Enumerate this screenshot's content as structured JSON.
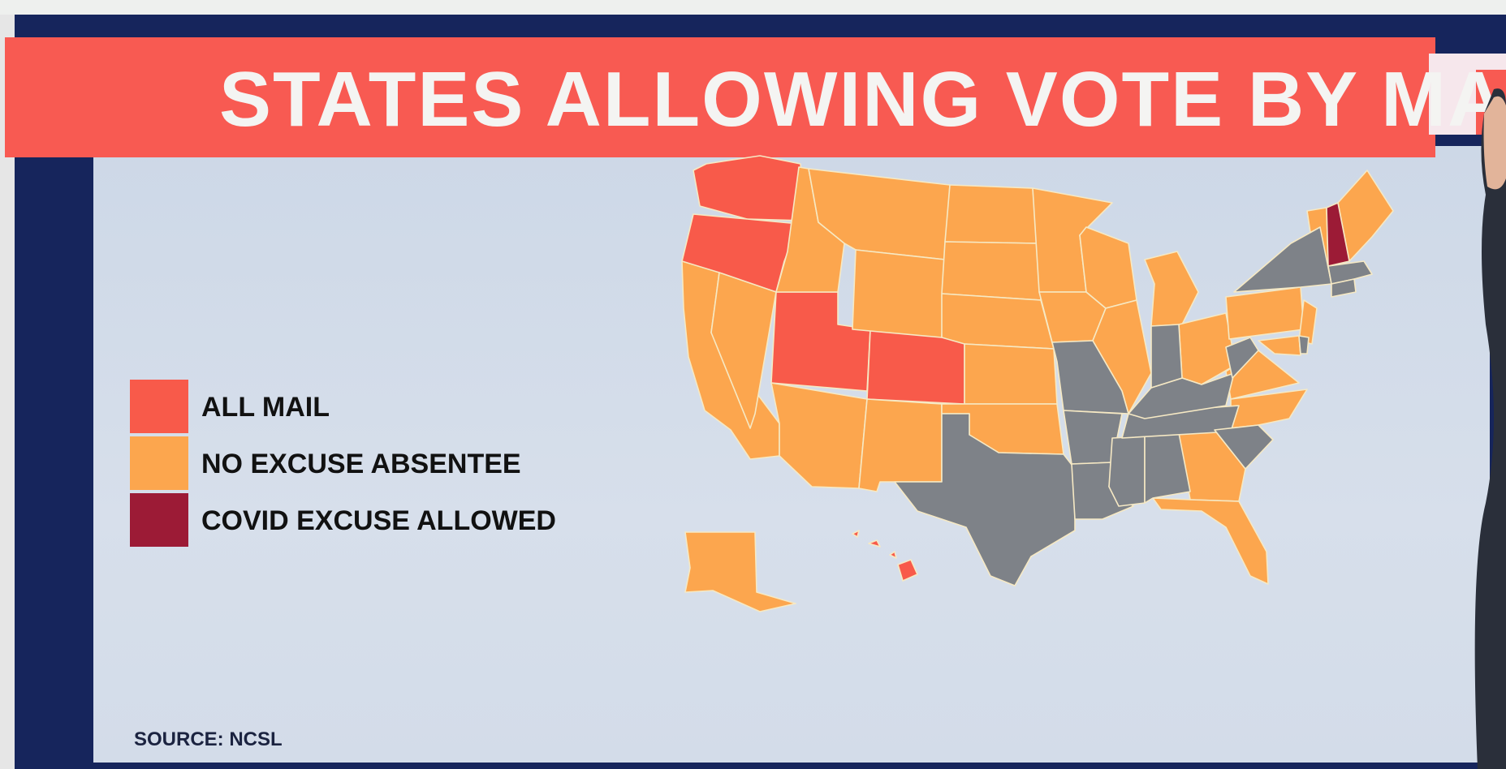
{
  "title": "STATES ALLOWING VOTE BY MAIL",
  "source": "SOURCE: NCSL",
  "colors": {
    "all_mail": "#f85a4a",
    "no_excuse_absentee": "#fca64e",
    "covid_excuse_allowed": "#9c1b36",
    "excuse_required": "#7e8288",
    "title_bar": "#f85a52",
    "frame": "#16255c"
  },
  "legend": [
    {
      "key": "all_mail",
      "label": "ALL MAIL"
    },
    {
      "key": "no_excuse_absentee",
      "label": "NO EXCUSE ABSENTEE"
    },
    {
      "key": "covid_excuse_allowed",
      "label": "COVID EXCUSE ALLOWED"
    }
  ],
  "states": {
    "WA": "all_mail",
    "OR": "all_mail",
    "UT": "all_mail",
    "CO": "all_mail",
    "HI": "all_mail",
    "CA": "no_excuse_absentee",
    "NV": "no_excuse_absentee",
    "ID": "no_excuse_absentee",
    "MT": "no_excuse_absentee",
    "WY": "no_excuse_absentee",
    "AZ": "no_excuse_absentee",
    "NM": "no_excuse_absentee",
    "ND": "no_excuse_absentee",
    "SD": "no_excuse_absentee",
    "NE": "no_excuse_absentee",
    "KS": "no_excuse_absentee",
    "OK": "no_excuse_absentee",
    "MN": "no_excuse_absentee",
    "IA": "no_excuse_absentee",
    "WI": "no_excuse_absentee",
    "IL": "no_excuse_absentee",
    "MI": "no_excuse_absentee",
    "OH": "no_excuse_absentee",
    "PA": "no_excuse_absentee",
    "NJ": "no_excuse_absentee",
    "MD": "no_excuse_absentee",
    "VA": "no_excuse_absentee",
    "NC": "no_excuse_absentee",
    "GA": "no_excuse_absentee",
    "FL": "no_excuse_absentee",
    "ME": "no_excuse_absentee",
    "VT": "no_excuse_absentee",
    "AK": "no_excuse_absentee",
    "NH": "covid_excuse_allowed",
    "TX": "excuse_required",
    "MO": "excuse_required",
    "AR": "excuse_required",
    "LA": "excuse_required",
    "MS": "excuse_required",
    "AL": "excuse_required",
    "TN": "excuse_required",
    "KY": "excuse_required",
    "IN": "excuse_required",
    "WV": "excuse_required",
    "SC": "excuse_required",
    "NY": "excuse_required",
    "MA": "excuse_required",
    "CT": "excuse_required",
    "DE": "excuse_required"
  }
}
